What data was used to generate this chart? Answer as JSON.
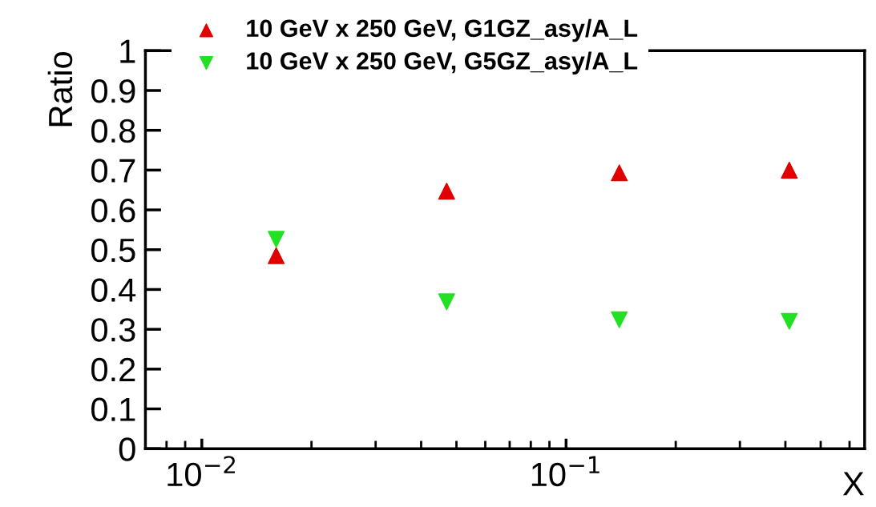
{
  "chart_data": {
    "type": "scatter",
    "xlabel": "X",
    "ylabel": "Ratio",
    "log": "x",
    "xlim": [
      0.007,
      0.66
    ],
    "xticks": [
      {
        "value": 0.01,
        "label": "10$^{−2}$"
      },
      {
        "value": 0.1,
        "label": "10$^{−1}$"
      }
    ],
    "ylim": [
      0,
      1
    ],
    "yticks": [
      0,
      0.1,
      0.2,
      0.3,
      0.4,
      0.5,
      0.6,
      0.7,
      0.8,
      0.9,
      1
    ],
    "legend": "top",
    "grid": false,
    "series": [
      {
        "name": "10 GeV x 250 GeV, G1GZ_asy/A_L",
        "color": "#e00000",
        "marker": "triangle",
        "x": [
          0.016,
          0.047,
          0.14,
          0.41
        ],
        "values": [
          0.485,
          0.647,
          0.693,
          0.7
        ]
      },
      {
        "name": "10 GeV x 250 GeV, G5GZ_asy/A_L",
        "color": "#22e022",
        "marker": "triangle_down",
        "x": [
          0.016,
          0.047,
          0.14,
          0.41
        ],
        "values": [
          0.526,
          0.369,
          0.324,
          0.32
        ]
      }
    ]
  }
}
